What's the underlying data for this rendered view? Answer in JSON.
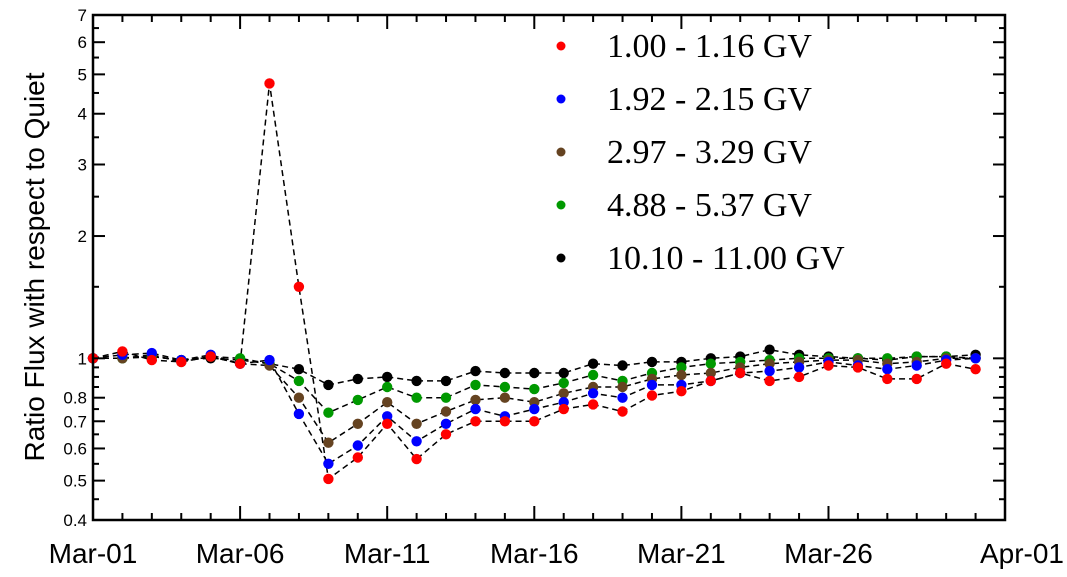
{
  "chart_data": {
    "type": "scatter",
    "title": "",
    "xlabel": "",
    "ylabel": "Ratio Flux with respect to Quiet",
    "y_scale": "log",
    "ylim": [
      0.4,
      7
    ],
    "xlim": [
      0,
      31
    ],
    "grid": false,
    "legend_position": "top-right",
    "x_ticks": [
      {
        "value": 0,
        "label": "Mar-01"
      },
      {
        "value": 5,
        "label": "Mar-06"
      },
      {
        "value": 10,
        "label": "Mar-11"
      },
      {
        "value": 15,
        "label": "Mar-16"
      },
      {
        "value": 20,
        "label": "Mar-21"
      },
      {
        "value": 25,
        "label": "Mar-26"
      },
      {
        "value": 31,
        "label": "Apr-01"
      }
    ],
    "y_ticks": [
      {
        "value": 0.4,
        "label": "0.4"
      },
      {
        "value": 0.5,
        "label": "0.5"
      },
      {
        "value": 0.6,
        "label": "0.6"
      },
      {
        "value": 0.7,
        "label": "0.7"
      },
      {
        "value": 0.8,
        "label": "0.8"
      },
      {
        "value": 1,
        "label": "1"
      },
      {
        "value": 2,
        "label": "2"
      },
      {
        "value": 3,
        "label": "3"
      },
      {
        "value": 4,
        "label": "4"
      },
      {
        "value": 5,
        "label": "5"
      },
      {
        "value": 6,
        "label": "6"
      },
      {
        "value": 7,
        "label": "7"
      }
    ],
    "x": [
      0,
      1,
      2,
      3,
      4,
      5,
      6,
      7,
      8,
      9,
      10,
      11,
      12,
      13,
      14,
      15,
      16,
      17,
      18,
      19,
      20,
      21,
      22,
      23,
      24,
      25,
      26,
      27,
      28,
      29,
      30
    ],
    "series": [
      {
        "name": "1.00 - 1.16 GV",
        "color": "#ff0000",
        "connected": true,
        "values": [
          1.0,
          1.04,
          0.99,
          0.98,
          1.01,
          0.97,
          4.75,
          1.5,
          0.505,
          0.57,
          0.69,
          0.565,
          0.65,
          0.7,
          0.7,
          0.7,
          0.75,
          0.77,
          0.74,
          0.81,
          0.83,
          0.88,
          0.92,
          0.88,
          0.9,
          0.96,
          0.95,
          0.89,
          0.89,
          0.97,
          0.94
        ]
      },
      {
        "name": "1.92 - 2.15 GV",
        "color": "#0000ff",
        "connected": true,
        "values": [
          1.0,
          1.02,
          1.03,
          0.99,
          1.02,
          0.97,
          0.99,
          0.73,
          0.55,
          0.61,
          0.72,
          0.625,
          0.69,
          0.75,
          0.72,
          0.75,
          0.78,
          0.82,
          0.8,
          0.86,
          0.86,
          0.88,
          0.92,
          0.93,
          0.95,
          0.98,
          0.96,
          0.94,
          0.96,
          0.99,
          1.0
        ]
      },
      {
        "name": "2.97 - 3.29 GV",
        "color": "#654321",
        "connected": true,
        "values": [
          1.0,
          1.0,
          1.02,
          0.98,
          1.01,
          0.97,
          0.96,
          0.8,
          0.62,
          0.69,
          0.78,
          0.69,
          0.74,
          0.79,
          0.8,
          0.78,
          0.82,
          0.85,
          0.85,
          0.89,
          0.91,
          0.92,
          0.95,
          0.97,
          0.98,
          0.99,
          0.99,
          0.97,
          0.98,
          1.0,
          1.0
        ]
      },
      {
        "name": "4.88 - 5.37 GV",
        "color": "#009900",
        "connected": true,
        "values": [
          1.0,
          1.0,
          1.01,
          0.99,
          1.01,
          1.0,
          0.97,
          0.88,
          0.735,
          0.79,
          0.85,
          0.8,
          0.8,
          0.86,
          0.85,
          0.84,
          0.87,
          0.91,
          0.88,
          0.92,
          0.95,
          0.97,
          0.98,
          0.99,
          1.0,
          1.0,
          1.0,
          1.0,
          1.01,
          1.01,
          1.0
        ]
      },
      {
        "name": "10.10 - 11.00 GV",
        "color": "#000000",
        "connected": true,
        "values": [
          1.0,
          1.0,
          1.01,
          0.99,
          1.0,
          0.99,
          0.97,
          0.94,
          0.86,
          0.89,
          0.9,
          0.88,
          0.88,
          0.93,
          0.92,
          0.92,
          0.92,
          0.97,
          0.96,
          0.98,
          0.98,
          1.0,
          1.01,
          1.05,
          1.02,
          1.01,
          1.0,
          0.99,
          1.01,
          1.01,
          1.02
        ]
      }
    ]
  }
}
